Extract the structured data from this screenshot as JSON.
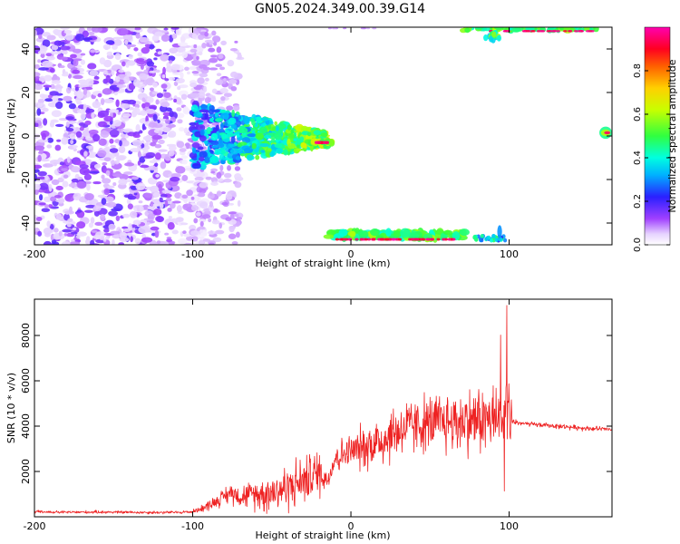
{
  "title": "GN05.2024.349.00.39.G14",
  "chart_data": [
    {
      "type": "heatmap",
      "title": "",
      "xlabel": "Height of straight line (km)",
      "ylabel": "Frequency (Hz)",
      "xlim": [
        -200,
        165
      ],
      "ylim": [
        -50,
        50
      ],
      "xticks": [
        -200,
        -100,
        0,
        100
      ],
      "yticks": [
        -40,
        -20,
        0,
        20,
        40
      ],
      "colorbar": {
        "label": "Normalized spectral amplitude",
        "range": [
          0,
          1
        ],
        "ticks": [
          "0.0",
          "0.2",
          "0.4",
          "0.6",
          "0.8"
        ],
        "colormap": "rainbow (white-violet-blue-cyan-green-yellow-red-magenta)"
      },
      "features": [
        {
          "x_range": [
            -200,
            -100
          ],
          "y_range": [
            -50,
            50
          ],
          "amplitude": 0.1,
          "description": "scattered noise speckle"
        },
        {
          "x_range": [
            -100,
            -15
          ],
          "y_range": [
            -10,
            10
          ],
          "amplitude": 0.5,
          "description": "converging energy band"
        },
        {
          "x_range": [
            -25,
            -12
          ],
          "y_range": [
            -4,
            -2
          ],
          "amplitude": 1.0,
          "description": "peak near zero frequency"
        },
        {
          "x_range": [
            -15,
            72
          ],
          "y_range": [
            -50,
            -44
          ],
          "amplitude": 0.9,
          "description": "bottom edge band"
        },
        {
          "x_range": [
            70,
            155
          ],
          "y_range": [
            45,
            50
          ],
          "amplitude": 0.9,
          "description": "top edge band"
        },
        {
          "x_range": [
            155,
            165
          ],
          "y_range": [
            0,
            3
          ],
          "amplitude": 1.0,
          "description": "isolated peak at right edge"
        }
      ]
    },
    {
      "type": "line",
      "title": "",
      "xlabel": "Height of straight line (km)",
      "ylabel": "SNR (10 * v/v)",
      "xlim": [
        -200,
        165
      ],
      "ylim": [
        0,
        9600
      ],
      "xticks": [
        -200,
        -100,
        0,
        100
      ],
      "yticks": [
        2000,
        4000,
        6000,
        8000
      ],
      "color": "#ee2222",
      "series": [
        {
          "x": [
            -200,
            -180,
            -160,
            -140,
            -120,
            -110,
            -100,
            -90,
            -80,
            -75,
            -70,
            -60,
            -50,
            -40,
            -30,
            -20,
            -15,
            -10,
            0,
            10,
            20,
            30,
            40,
            50,
            60,
            70,
            80,
            90,
            95,
            100,
            102,
            110,
            120,
            130,
            140,
            150,
            165
          ],
          "mean": [
            220,
            200,
            210,
            200,
            190,
            200,
            220,
            500,
            900,
            1100,
            900,
            1000,
            1100,
            1300,
            1600,
            2000,
            1600,
            2600,
            2900,
            3100,
            3400,
            3800,
            4000,
            4100,
            4200,
            4200,
            4300,
            4300,
            4400,
            4600,
            4200,
            4100,
            4050,
            4000,
            3950,
            3900,
            3850
          ],
          "spread": [
            90,
            90,
            90,
            90,
            90,
            90,
            120,
            300,
            500,
            700,
            600,
            900,
            1300,
            1400,
            1500,
            1500,
            600,
            1000,
            1100,
            1400,
            1800,
            1800,
            1700,
            1800,
            1900,
            2000,
            2100,
            2200,
            2600,
            3200,
            200,
            150,
            150,
            150,
            150,
            150,
            150
          ]
        }
      ]
    }
  ]
}
